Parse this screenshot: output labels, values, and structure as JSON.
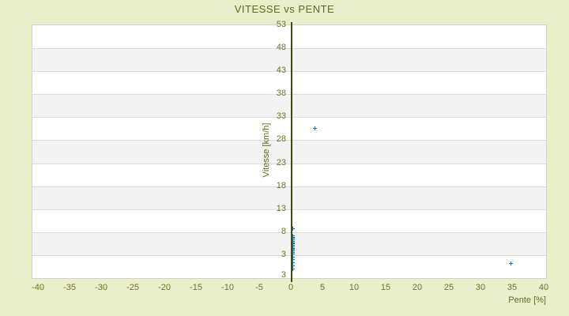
{
  "title": "VITESSE vs PENTE",
  "colors": {
    "background": "#e9eecb",
    "title_text": "#5c6a1c",
    "tick_text": "#6f732c",
    "axis_line": "#40490f",
    "band_gray": "#f2f2f2",
    "band_white": "#ffffff",
    "band_line": "#dcdcdc",
    "plot_border": "#d2d2d2",
    "point_blue": "#2e6da4"
  },
  "chart_data": {
    "type": "scatter",
    "title": "VITESSE vs PENTE",
    "xlabel": "Pente [%]",
    "ylabel": "Vitesse [km/h]",
    "xlim": [
      -41,
      40.5
    ],
    "ylim": [
      -2,
      53
    ],
    "x_ticks": [
      "-40",
      "-35",
      "-30",
      "-25",
      "-20",
      "-15",
      "-10",
      "-5",
      "0",
      "5",
      "10",
      "15",
      "20",
      "25",
      "30",
      "35",
      "40"
    ],
    "x_tick_values": [
      -40,
      -35,
      -30,
      -25,
      -20,
      -15,
      -10,
      -5,
      0,
      5,
      10,
      15,
      20,
      25,
      30,
      35,
      40
    ],
    "y_ticks": [
      "53",
      "48",
      "43",
      "38",
      "33",
      "28",
      "23",
      "18",
      "13",
      "8",
      "3"
    ],
    "y_tick_values": [
      53,
      48,
      43,
      38,
      33,
      28,
      23,
      18,
      13,
      8,
      3
    ],
    "y_axis_bottom_label": "3",
    "grid": "alternating-horizontal-bands",
    "legend": "none",
    "marker": "plus",
    "points": [
      {
        "x": 0.2,
        "y": 8.8
      },
      {
        "x": 0.2,
        "y": 7.3
      },
      {
        "x": 0.2,
        "y": 7.0
      },
      {
        "x": 0.2,
        "y": 6.7
      },
      {
        "x": 0.2,
        "y": 6.4
      },
      {
        "x": 0.2,
        "y": 6.1
      },
      {
        "x": 0.2,
        "y": 5.8
      },
      {
        "x": 0.2,
        "y": 5.5
      },
      {
        "x": 0.2,
        "y": 5.2
      },
      {
        "x": 0.2,
        "y": 4.9
      },
      {
        "x": 0.2,
        "y": 4.6
      },
      {
        "x": 0.2,
        "y": 4.3
      },
      {
        "x": 0.2,
        "y": 4.0
      },
      {
        "x": 0.2,
        "y": 3.7
      },
      {
        "x": 0.2,
        "y": 3.4
      },
      {
        "x": 0.2,
        "y": 2.7
      },
      {
        "x": 0.2,
        "y": 2.1
      },
      {
        "x": 0.2,
        "y": 1.4
      },
      {
        "x": 0.2,
        "y": 0.7
      },
      {
        "x": 0.2,
        "y": 0.1
      },
      {
        "x": 3.8,
        "y": 30.6
      },
      {
        "x": 34.8,
        "y": 1.3
      }
    ]
  }
}
